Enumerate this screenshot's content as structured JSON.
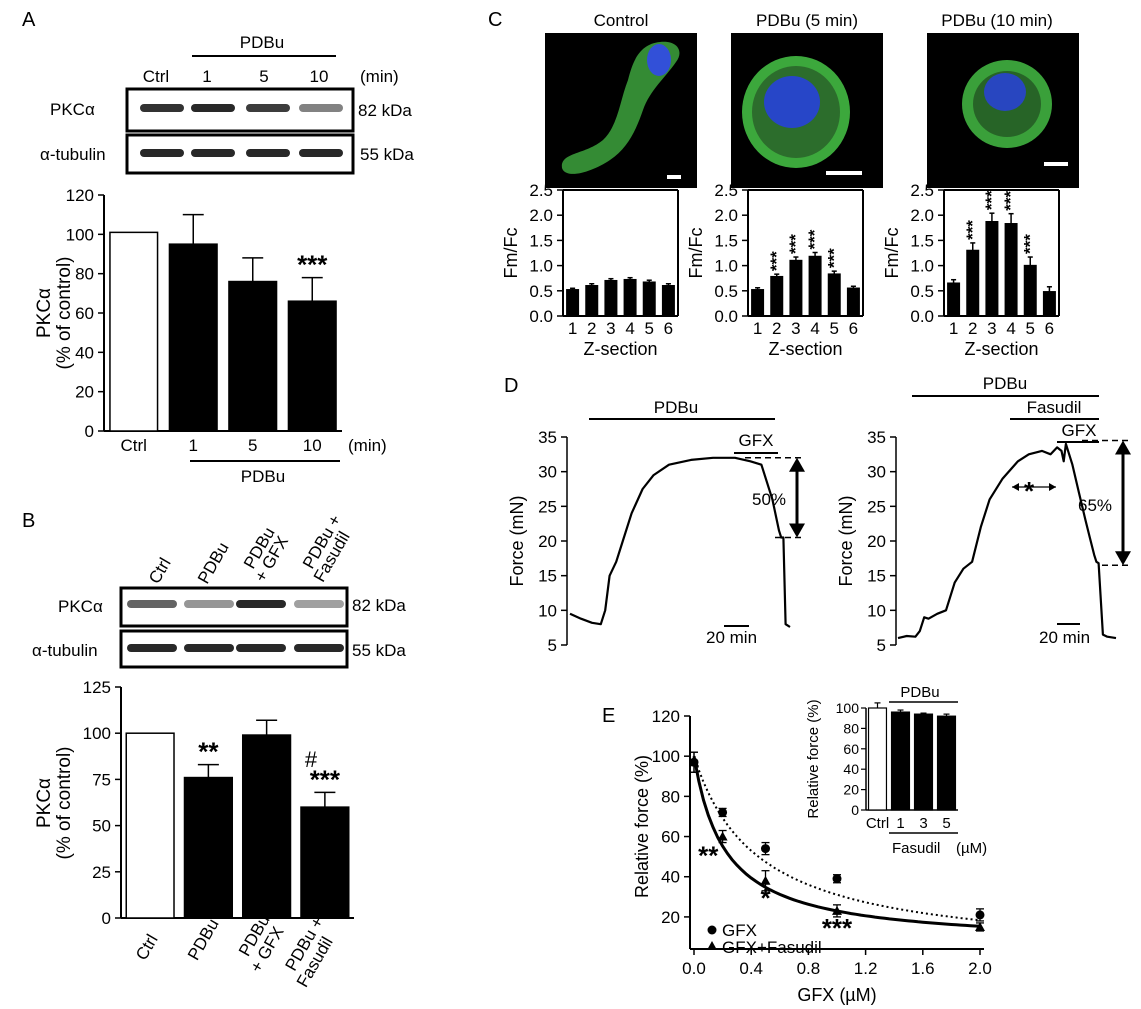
{
  "panel_letters": {
    "a": "A",
    "b": "B",
    "c": "C",
    "d": "D",
    "e": "E"
  },
  "panelA": {
    "treatment": "PDBu",
    "lanes": [
      "Ctrl",
      "1",
      "5",
      "10"
    ],
    "unit": "(min)",
    "blots": [
      {
        "name": "PKCα",
        "kda": "82 kDa",
        "intensity": [
          0.85,
          0.9,
          0.8,
          0.45
        ]
      },
      {
        "name": "α-tubulin",
        "kda": "55 kDa",
        "intensity": [
          0.9,
          0.9,
          0.9,
          0.9
        ]
      }
    ]
  },
  "panelB": {
    "lanes": [
      "Ctrl",
      "PDBu",
      "PDBu\n+ GFX",
      "PDBu +\nFasudil"
    ],
    "blots": [
      {
        "name": "PKCα",
        "kda": "82 kDa",
        "intensity": [
          0.6,
          0.35,
          0.9,
          0.3
        ]
      },
      {
        "name": "α-tubulin",
        "kda": "55 kDa",
        "intensity": [
          0.9,
          0.9,
          0.9,
          0.9
        ]
      }
    ]
  },
  "panelC": {
    "titles": [
      "Control",
      "PDBu (5 min)",
      "PDBu (10 min)"
    ]
  },
  "panelD": {
    "left": {
      "treatment": "PDBu",
      "inhibitor": "GFX",
      "pct": "50%",
      "scale": "20 min"
    },
    "right": {
      "treatment": "PDBu",
      "inhibitor1": "Fasudil",
      "inhibitor2": "GFX",
      "pct": "65%",
      "star": "*",
      "scale": "20 min"
    }
  },
  "chart_data": [
    {
      "id": "A",
      "type": "bar",
      "categories": [
        "Ctrl",
        "1",
        "5",
        "10"
      ],
      "values": [
        101,
        95,
        76,
        66
      ],
      "errors": [
        0,
        15,
        12,
        12
      ],
      "fills": [
        "white",
        "black",
        "black",
        "black"
      ],
      "annotations": [
        "",
        "",
        "",
        "***"
      ],
      "xlabel": "PDBu",
      "x_unit": "(min)",
      "ylabel": "PKCα\n(% of control)",
      "ylim": [
        0,
        120
      ],
      "yticks": [
        0,
        20,
        40,
        60,
        80,
        100,
        120
      ]
    },
    {
      "id": "B",
      "type": "bar",
      "categories": [
        "Ctrl",
        "PDBu",
        "PDBu\n+ GFX",
        "PDBu +\nFasudil"
      ],
      "values": [
        100,
        76,
        99,
        60
      ],
      "errors": [
        0,
        7,
        8,
        8
      ],
      "fills": [
        "white",
        "black",
        "black",
        "black"
      ],
      "annotations": [
        "",
        "**",
        "",
        "***"
      ],
      "hash": "#",
      "ylabel": "PKCα\n(% of control)",
      "ylim": [
        0,
        125
      ],
      "yticks": [
        0,
        25,
        50,
        75,
        100,
        125
      ]
    },
    {
      "id": "C1",
      "type": "bar",
      "categories": [
        "1",
        "2",
        "3",
        "4",
        "5",
        "6"
      ],
      "values": [
        0.52,
        0.6,
        0.7,
        0.72,
        0.67,
        0.6
      ],
      "errors": [
        0.03,
        0.04,
        0.04,
        0.04,
        0.04,
        0.04
      ],
      "annotations": [
        "",
        "",
        "",
        "",
        "",
        ""
      ],
      "xlabel": "Z-section",
      "ylabel": "Fm/Fc",
      "ylim": [
        0,
        2.5
      ],
      "yticks": [
        0.0,
        0.5,
        1.0,
        1.5,
        2.0,
        2.5
      ]
    },
    {
      "id": "C2",
      "type": "bar",
      "categories": [
        "1",
        "2",
        "3",
        "4",
        "5",
        "6"
      ],
      "values": [
        0.52,
        0.78,
        1.1,
        1.18,
        0.83,
        0.55
      ],
      "errors": [
        0.04,
        0.05,
        0.07,
        0.08,
        0.06,
        0.04
      ],
      "annotations": [
        "",
        "***",
        "***",
        "***",
        "***",
        ""
      ],
      "xlabel": "Z-section",
      "ylabel": "Fm/Fc",
      "ylim": [
        0,
        2.5
      ],
      "yticks": [
        0.0,
        0.5,
        1.0,
        1.5,
        2.0,
        2.5
      ]
    },
    {
      "id": "C3",
      "type": "bar",
      "categories": [
        "1",
        "2",
        "3",
        "4",
        "5",
        "6"
      ],
      "values": [
        0.65,
        1.3,
        1.87,
        1.83,
        1.0,
        0.48
      ],
      "errors": [
        0.07,
        0.15,
        0.17,
        0.2,
        0.17,
        0.1
      ],
      "annotations": [
        "",
        "***",
        "***",
        "***",
        "***",
        ""
      ],
      "xlabel": "Z-section",
      "ylabel": "Fm/Fc",
      "ylim": [
        0,
        2.5
      ],
      "yticks": [
        0.0,
        0.5,
        1.0,
        1.5,
        2.0,
        2.5
      ]
    },
    {
      "id": "D1",
      "type": "line",
      "ylabel": "Force (mN)",
      "ylim": [
        5,
        35
      ],
      "yticks": [
        5,
        10,
        15,
        20,
        25,
        30,
        35
      ],
      "x": [
        0,
        5,
        10,
        14,
        16,
        18,
        21,
        24,
        28,
        33,
        38,
        45,
        55,
        65,
        75,
        82,
        87,
        92,
        95,
        96,
        97,
        98,
        99,
        100
      ],
      "y": [
        9.5,
        8.8,
        8.2,
        8.0,
        10,
        15,
        17,
        20,
        24,
        27.5,
        29.5,
        31,
        31.7,
        32,
        32,
        31.5,
        31,
        26,
        21.5,
        20.5,
        20.5,
        8,
        7.8,
        7.6
      ]
    },
    {
      "id": "D2",
      "type": "line",
      "ylabel": "Force (mN)",
      "ylim": [
        5,
        35
      ],
      "yticks": [
        5,
        10,
        15,
        20,
        25,
        30,
        35
      ],
      "x": [
        0,
        4,
        8,
        10,
        12,
        14,
        18,
        22,
        26,
        28,
        30,
        34,
        38,
        42,
        48,
        55,
        60,
        66,
        70,
        73,
        75,
        76,
        77,
        80,
        83,
        86,
        88,
        90,
        91,
        92,
        94,
        96,
        100
      ],
      "y": [
        6,
        6.3,
        6.2,
        7,
        9,
        8.8,
        9.5,
        10,
        14,
        15,
        16,
        17,
        22,
        26,
        29,
        31.5,
        32.5,
        33,
        32.5,
        33.5,
        33,
        31.5,
        34,
        31,
        27,
        23,
        20.5,
        18,
        17,
        16.8,
        6.5,
        6.2,
        6
      ]
    },
    {
      "id": "E",
      "type": "scatter",
      "xlabel": "GFX (µM)",
      "ylabel": "Relative force (%)",
      "xlim": [
        0,
        2.0
      ],
      "ylim": [
        10,
        120
      ],
      "xticks": [
        0.0,
        0.4,
        0.8,
        1.2,
        1.6,
        2.0
      ],
      "yticks": [
        20,
        40,
        60,
        80,
        100,
        120
      ],
      "series": [
        {
          "name": "GFX",
          "marker": "circle",
          "x": [
            0,
            0.2,
            0.5,
            1.0,
            2.0
          ],
          "y": [
            97,
            72,
            54,
            39,
            21
          ],
          "errors": [
            5,
            2,
            3,
            2,
            3
          ]
        },
        {
          "name": "GFX+Fasudil",
          "marker": "triangle",
          "x": [
            0,
            0.2,
            0.5,
            1.0,
            2.0
          ],
          "y": [
            97,
            60,
            38,
            23,
            15
          ],
          "errors": [
            5,
            3,
            5,
            3,
            2
          ]
        }
      ],
      "annotations": [
        {
          "x": 0.1,
          "y": 46,
          "text": "**"
        },
        {
          "x": 0.5,
          "y": 25,
          "text": "*"
        },
        {
          "x": 1.0,
          "y": 10,
          "text": "***"
        }
      ],
      "inset": {
        "type": "bar",
        "ylabel": "Relative force (%)",
        "ylim": [
          0,
          100
        ],
        "yticks": [
          0,
          20,
          40,
          60,
          80,
          100
        ],
        "categories": [
          "Ctrl",
          "1",
          "3",
          "5"
        ],
        "values": [
          100,
          96,
          94,
          92
        ],
        "errors": [
          5,
          2,
          1,
          2
        ],
        "fills": [
          "white",
          "black",
          "black",
          "black"
        ],
        "top_label": "PDBu",
        "bottom_label": "Fasudil",
        "unit": "(µM)"
      }
    }
  ]
}
